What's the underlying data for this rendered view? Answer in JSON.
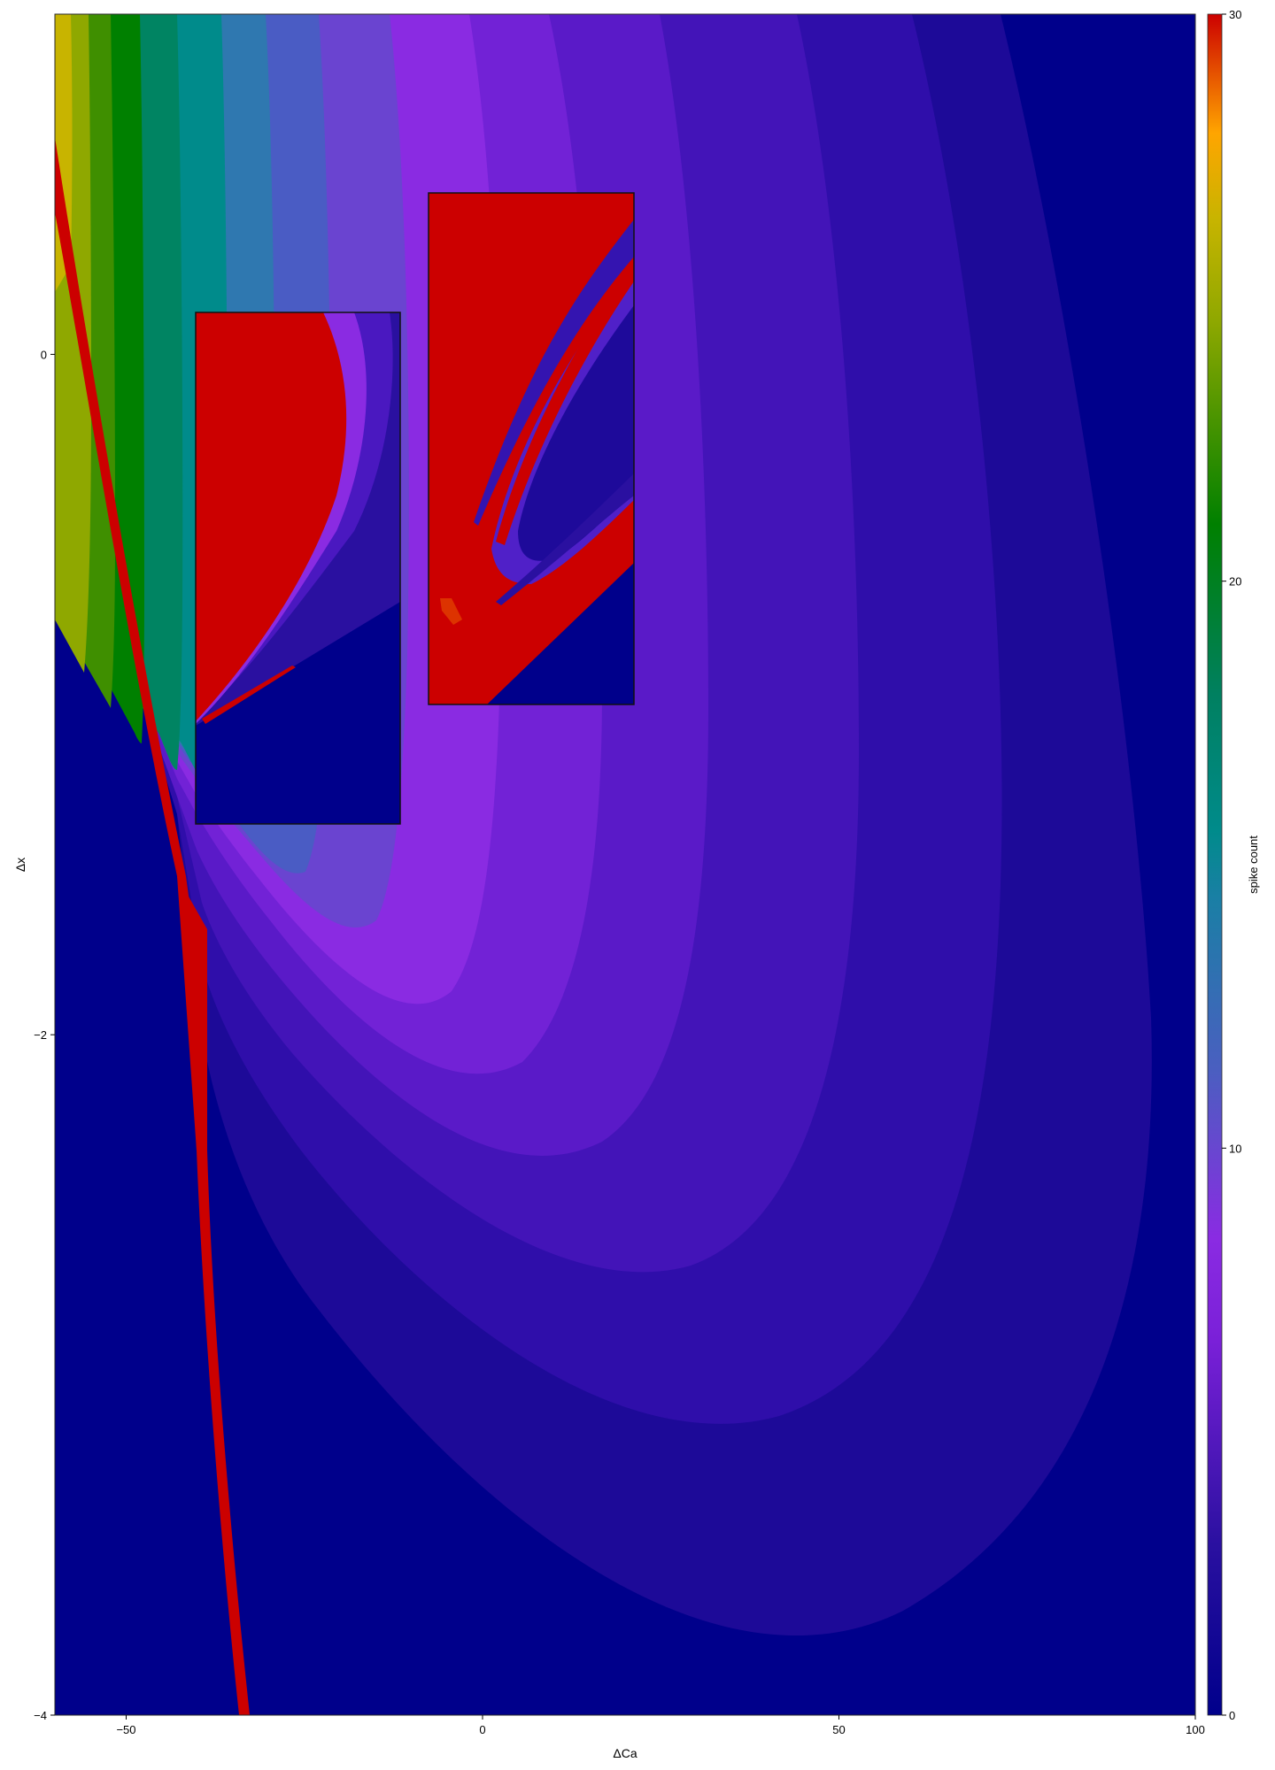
{
  "chart_data": {
    "type": "heatmap",
    "title": "",
    "xlabel": "ΔCa",
    "ylabel": "Δx",
    "xlim": [
      -60,
      100
    ],
    "ylim": [
      -4,
      1
    ],
    "x_ticks": [
      -50,
      0,
      50,
      100
    ],
    "y_ticks": [
      -4,
      -2,
      0
    ],
    "colorbar": {
      "label": "spike count",
      "range": [
        0,
        30
      ],
      "ticks": [
        0,
        10,
        20,
        30
      ],
      "colors": [
        "#00008b",
        "#3a12b8",
        "#8a2be2",
        "#4a5fc0",
        "#008b8b",
        "#008000",
        "#6f9a00",
        "#c8b400",
        "#ffa500",
        "#cc0000"
      ]
    },
    "regions": [
      {
        "name": "quiescent",
        "spike_count": 0,
        "color": "#00008b"
      },
      {
        "name": "low-spiking band",
        "spike_count": 2,
        "color": "#2a10a0"
      },
      {
        "name": "violet band",
        "spike_count": 5,
        "color": "#8a2be2"
      },
      {
        "name": "blue band",
        "spike_count": 8,
        "color": "#3f66bc"
      },
      {
        "name": "teal band",
        "spike_count": 10,
        "color": "#008b8b"
      },
      {
        "name": "green band",
        "spike_count": 15,
        "color": "#008000"
      },
      {
        "name": "yellow band",
        "spike_count": 21,
        "color": "#c8b400"
      },
      {
        "name": "saturated edge",
        "spike_count": 30,
        "color": "#cc0000"
      }
    ],
    "insets": [
      {
        "name": "zoom-left",
        "features": [
          "saturated region",
          "low-spike bands",
          "quiescent region"
        ]
      },
      {
        "name": "zoom-right",
        "features": [
          "saturated region",
          "tongue-shaped low-spike bands",
          "quiescent region"
        ]
      }
    ]
  }
}
